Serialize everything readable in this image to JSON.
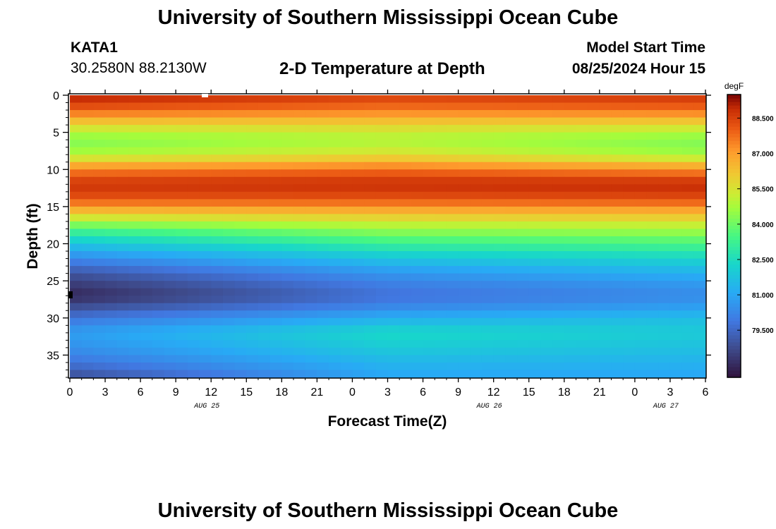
{
  "header": {
    "title": "University of Southern Mississippi Ocean Cube",
    "station_id": "KATA1",
    "coords": "30.2580N  88.2130W",
    "subtitle": "2-D Temperature at Depth",
    "start_label": "Model Start Time",
    "start_value": "08/25/2024 Hour 15"
  },
  "footer": {
    "title": "University of Southern Mississippi Ocean Cube"
  },
  "chart_data": {
    "type": "heatmap",
    "title": "2-D Temperature at Depth",
    "xlabel": "Forecast Time(Z)",
    "ylabel": "Depth (ft)",
    "x_ticks": [
      "0",
      "3",
      "6",
      "9",
      "12",
      "15",
      "18",
      "21",
      "0",
      "3",
      "6",
      "9",
      "12",
      "15",
      "18",
      "21",
      "0",
      "3",
      "6"
    ],
    "x_range_hours": [
      0,
      54
    ],
    "date_labels": [
      {
        "label": "AUG 25",
        "hour": 12
      },
      {
        "label": "AUG 26",
        "hour": 36
      },
      {
        "label": "AUG 27",
        "hour": 51
      }
    ],
    "y_ticks": [
      0,
      5,
      10,
      15,
      20,
      25,
      30,
      35
    ],
    "y_range": [
      0,
      38
    ],
    "y_inverted": true,
    "colorbar": {
      "unit": "degF",
      "range": [
        77.5,
        89.5
      ],
      "tick_values": [
        79.5,
        81.0,
        82.5,
        84.0,
        85.5,
        87.0,
        88.5
      ],
      "tick_labels": [
        "79.500",
        "81.000",
        "82.500",
        "84.000",
        "85.500",
        "87.000",
        "88.500"
      ]
    },
    "depth_profiles": {
      "depths": [
        0,
        2,
        4,
        6,
        8,
        10,
        12,
        14,
        16,
        18,
        20,
        22,
        24,
        26,
        27,
        28,
        30,
        32,
        34,
        36,
        38
      ],
      "hour_0": [
        89.2,
        88.0,
        85.8,
        84.2,
        84.8,
        87.5,
        88.8,
        88.2,
        86.0,
        83.5,
        81.8,
        80.3,
        79.0,
        78.2,
        78.0,
        78.5,
        79.8,
        80.8,
        80.5,
        79.8,
        78.8
      ],
      "hour_27": [
        88.6,
        87.6,
        85.9,
        84.8,
        85.6,
        87.8,
        88.9,
        88.2,
        86.3,
        84.6,
        83.2,
        81.8,
        80.6,
        79.9,
        79.8,
        80.0,
        81.2,
        82.4,
        82.0,
        81.4,
        81.0
      ],
      "hour_54": [
        88.8,
        87.8,
        85.7,
        84.2,
        84.6,
        87.3,
        89.0,
        88.3,
        86.4,
        84.8,
        83.5,
        82.3,
        81.3,
        80.5,
        80.4,
        80.6,
        81.6,
        82.0,
        81.7,
        81.3,
        81.0
      ]
    }
  }
}
